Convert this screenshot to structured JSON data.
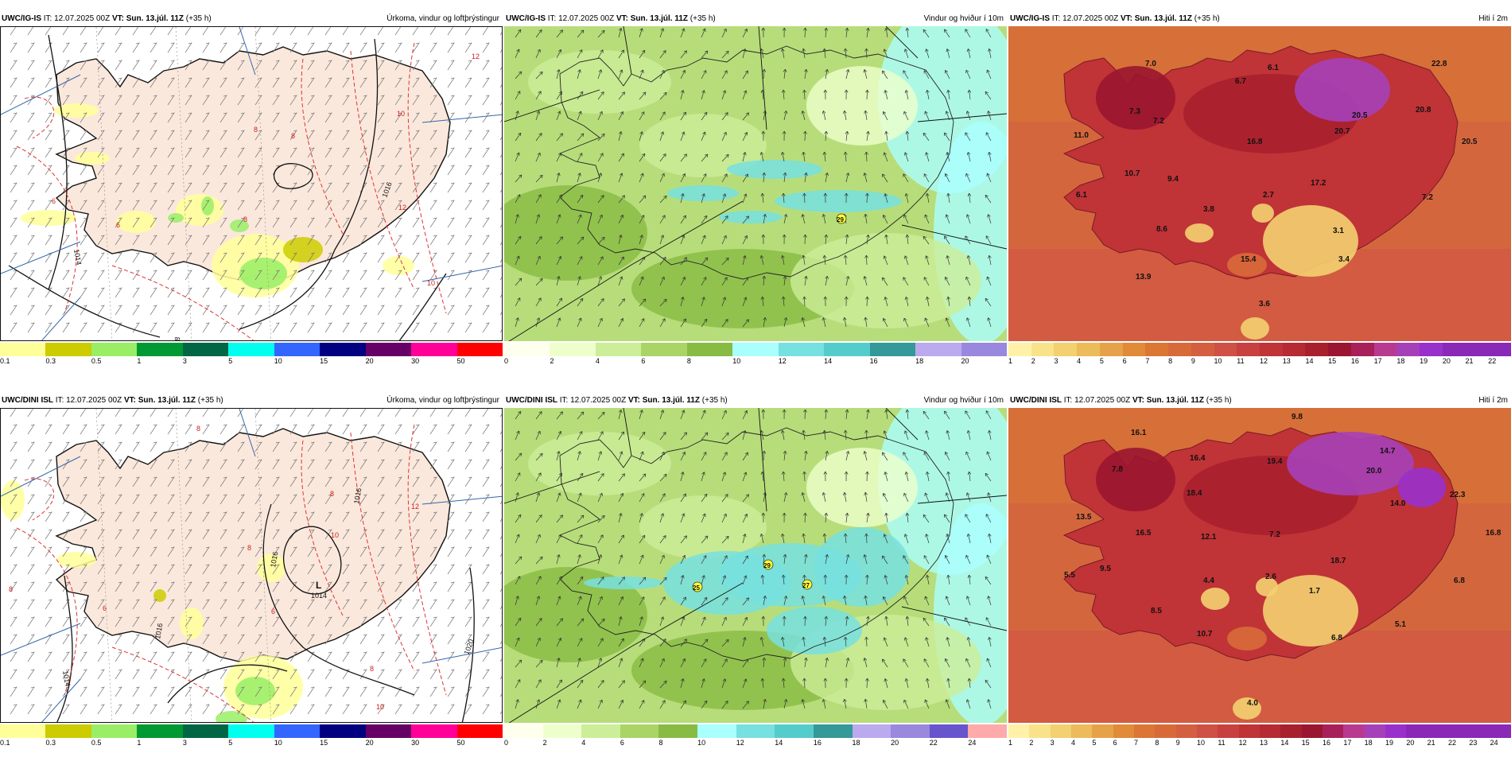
{
  "colors": {
    "precip": [
      "#ffff99",
      "#cccc00",
      "#99ee66",
      "#009933",
      "#006644",
      "#00ffee",
      "#3366ff",
      "#000080",
      "#660066",
      "#ff0099",
      "#ff0000"
    ],
    "wind": [
      "#ffffee",
      "#eeffcc",
      "#ccee99",
      "#aad466",
      "#88bb44",
      "#aaffff",
      "#77e0e0",
      "#55cccc",
      "#339999",
      "#bbaaee",
      "#9988dd",
      "#6655cc",
      "#ffaaaa"
    ],
    "temp": [
      "#fff2a8",
      "#f9e38a",
      "#f3d070",
      "#ecbb5a",
      "#e6a248",
      "#e08a3a",
      "#db7634",
      "#d86a3a",
      "#d45f40",
      "#cf5044",
      "#c84040",
      "#c03337",
      "#b52a33",
      "#a8202e",
      "#9a1530",
      "#a8205a",
      "#b83a90",
      "#a640b8",
      "#9930cc",
      "#8a28b8"
    ]
  },
  "rows": [
    {
      "model": "UWC/IG-IS",
      "init_label": "IT:",
      "init": "12.07.2025 00Z",
      "valid_label": "VT:",
      "valid": "Sun. 13.júl. 11Z",
      "lead": "(+35 h)",
      "panels": [
        {
          "title": "Úrkoma, vindur og loftþrýstingur",
          "colorbar_ticks": [
            "0.1",
            "0.3",
            "0.5",
            "1",
            "3",
            "5",
            "10",
            "15",
            "20",
            "30",
            "50"
          ],
          "pressure_labels": [
            "1014",
            "1016",
            "1018",
            "1018"
          ],
          "contour_labels": [
            "12",
            "10",
            "8",
            "8",
            "6",
            "6",
            "8",
            "10",
            "12",
            "6"
          ],
          "low_label": ""
        },
        {
          "title": "Vindur og hviður í 10m",
          "colorbar_ticks": [
            "0",
            "2",
            "4",
            "6",
            "8",
            "10",
            "12",
            "14",
            "16",
            "18",
            "20"
          ],
          "gust_labels": [
            "29"
          ]
        },
        {
          "title": "Hiti í 2m",
          "colorbar_ticks": [
            "1",
            "2",
            "3",
            "4",
            "5",
            "6",
            "7",
            "8",
            "9",
            "10",
            "11",
            "12",
            "13",
            "14",
            "15",
            "16",
            "17",
            "18",
            "19",
            "20",
            "21",
            "22"
          ],
          "temp_labels": [
            "7.0",
            "6.1",
            "22.8",
            "6.7",
            "7.3",
            "7.2",
            "11.0",
            "20.5",
            "20.7",
            "20.8",
            "16.8",
            "20.5",
            "10.7",
            "9.4",
            "17.2",
            "6.1",
            "2.7",
            "7.2",
            "3.8",
            "8.6",
            "3.1",
            "15.4",
            "3.4",
            "13.9",
            "3.6"
          ]
        }
      ]
    },
    {
      "model": "UWC/DINI ISL",
      "init_label": "IT:",
      "init": "12.07.2025 00Z",
      "valid_label": "VT:",
      "valid": "Sun. 13.júl. 11Z",
      "lead": "(+35 h)",
      "panels": [
        {
          "title": "Úrkoma, vindur og loftþrýstingur",
          "colorbar_ticks": [
            "0.1",
            "0.3",
            "0.5",
            "1",
            "3",
            "5",
            "10",
            "15",
            "20",
            "30",
            "50"
          ],
          "pressure_labels": [
            "1016",
            "1016",
            "1014",
            "1016",
            "1014",
            "1020"
          ],
          "contour_labels": [
            "8",
            "8",
            "12",
            "10",
            "8",
            "6",
            "8",
            "6",
            "8",
            "10"
          ],
          "low_label": "L"
        },
        {
          "title": "Vindur og hviður í 10m",
          "colorbar_ticks": [
            "0",
            "2",
            "4",
            "6",
            "8",
            "10",
            "12",
            "14",
            "16",
            "18",
            "20",
            "22",
            "24"
          ],
          "gust_labels": [
            "25",
            "29",
            "27"
          ]
        },
        {
          "title": "Hiti í 2m",
          "colorbar_ticks": [
            "1",
            "2",
            "3",
            "4",
            "5",
            "6",
            "7",
            "8",
            "9",
            "10",
            "11",
            "12",
            "13",
            "14",
            "15",
            "16",
            "17",
            "18",
            "19",
            "20",
            "21",
            "22",
            "23",
            "24"
          ],
          "temp_labels": [
            "9.8",
            "16.1",
            "16.4",
            "7.8",
            "18.4",
            "19.4",
            "20.0",
            "14.7",
            "22.3",
            "13.5",
            "16.5",
            "12.1",
            "7.2",
            "14.0",
            "16.8",
            "18.7",
            "5.5",
            "9.5",
            "4.4",
            "2.6",
            "1.7",
            "6.8",
            "8.5",
            "10.7",
            "6.8",
            "5.1",
            "4.0"
          ]
        }
      ]
    }
  ]
}
